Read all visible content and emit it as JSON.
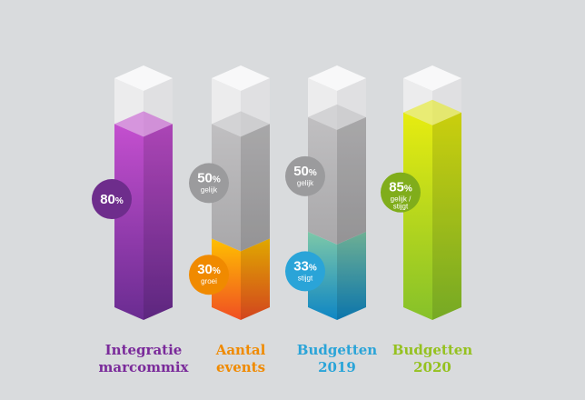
{
  "chart_data": {
    "type": "bar",
    "bar_style": "isometric-stacked-columns",
    "ylim": [
      0,
      100
    ],
    "categories": [
      {
        "label_lines": [
          "Integratie",
          "marcommix"
        ],
        "color": "#7a2a9a",
        "segments": [
          {
            "value": 80,
            "display": "80",
            "unit": "%",
            "sub": "",
            "top": "#c44fcf",
            "bottom": "#6a2c91",
            "badge": "#6e2d8c"
          }
        ]
      },
      {
        "label_lines": [
          "Aantal",
          "events"
        ],
        "color": "#f08a00",
        "segments": [
          {
            "value": 30,
            "display": "30",
            "unit": "%",
            "sub": "groei",
            "top": "#ffc000",
            "bottom": "#f04e23",
            "badge": "#f08a00"
          },
          {
            "value": 50,
            "display": "50",
            "unit": "%",
            "sub": "gelijk",
            "top": "#c0bfc1",
            "bottom": "#a9a8aa",
            "badge": "#9b9b9d"
          }
        ]
      },
      {
        "label_lines": [
          "Budgetten",
          "2019"
        ],
        "color": "#2aa4d8",
        "segments": [
          {
            "value": 33,
            "display": "33",
            "unit": "%",
            "sub": "stijgt",
            "top": "#7dc8a8",
            "bottom": "#0e86c4",
            "badge": "#2aa4d8"
          },
          {
            "value": 50,
            "display": "50",
            "unit": "%",
            "sub": "gelijk",
            "top": "#c0bfc1",
            "bottom": "#a9a8aa",
            "badge": "#9b9b9d"
          }
        ]
      },
      {
        "label_lines": [
          "Budgetten",
          "2020"
        ],
        "color": "#95c11f",
        "segments": [
          {
            "value": 85,
            "display": "85",
            "unit": "%",
            "sub": "gelijk / stijgt",
            "top": "#e7ec10",
            "bottom": "#86c12a",
            "badge": "#80ad1b"
          }
        ]
      }
    ]
  }
}
